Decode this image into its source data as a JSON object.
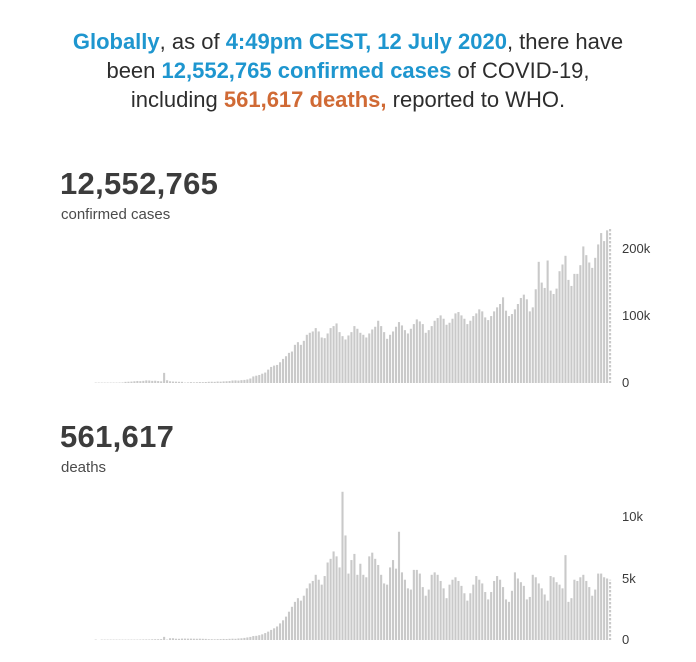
{
  "colors": {
    "accent_blue": "#1e96cf",
    "accent_orange": "#d06a35",
    "bar_gray": "#c9c9c9",
    "number_gray": "#3c3c3c",
    "text_dark": "#2d2d2d",
    "tick_gray": "#3a3a3a"
  },
  "summary": {
    "segments": [
      {
        "text": "Globally",
        "style": "blue"
      },
      {
        "text": ", as of ",
        "style": "plain"
      },
      {
        "text": "4:49pm CEST, 12 July 2020",
        "style": "blue"
      },
      {
        "text": ", there have been ",
        "style": "plain"
      },
      {
        "text": "12,552,765 confirmed cases",
        "style": "blue"
      },
      {
        "text": " of COVID-19, including ",
        "style": "plain"
      },
      {
        "text": "561,617 deaths,",
        "style": "orange"
      },
      {
        "text": " reported to WHO.",
        "style": "plain"
      }
    ]
  },
  "sections": {
    "cases": {
      "headline": "12,552,765",
      "label": "confirmed cases"
    },
    "deaths": {
      "headline": "561,617",
      "label": "deaths"
    }
  },
  "chart_data": [
    {
      "id": "cases",
      "type": "bar",
      "title": "confirmed cases (daily new, global)",
      "xlabel": "",
      "ylabel": "",
      "grid": false,
      "legend": "none",
      "bar_color": "#c9c9c9",
      "last_bar_partial": true,
      "ylim": [
        0,
        242000
      ],
      "yticks": [
        {
          "value": 200000,
          "label": "200k"
        },
        {
          "value": 100000,
          "label": "100k"
        },
        {
          "value": 0,
          "label": "0"
        }
      ],
      "values": [
        0,
        0,
        0,
        0,
        0,
        0,
        0,
        0,
        0,
        0,
        0,
        50,
        100,
        150,
        100,
        200,
        300,
        450,
        600,
        700,
        800,
        1700,
        1900,
        2100,
        2600,
        3000,
        2800,
        3200,
        3900,
        3700,
        3200,
        3400,
        2900,
        2500,
        15150,
        4100,
        2600,
        2200,
        2000,
        1800,
        1750,
        600,
        900,
        1300,
        1000,
        1200,
        1400,
        1300,
        1500,
        1800,
        1900,
        1750,
        2200,
        2000,
        2400,
        2600,
        2900,
        3700,
        3900,
        3600,
        4250,
        4600,
        5300,
        6700,
        9800,
        10900,
        12000,
        13900,
        15600,
        20000,
        24000,
        26000,
        27000,
        31000,
        36000,
        40000,
        45000,
        47000,
        57000,
        61000,
        57000,
        63000,
        72000,
        75000,
        77000,
        82000,
        77000,
        68000,
        67000,
        74000,
        82000,
        85000,
        89000,
        76000,
        70000,
        65000,
        71000,
        76000,
        85000,
        81000,
        75000,
        72000,
        68000,
        74000,
        80000,
        84000,
        93000,
        85000,
        76000,
        66000,
        72000,
        77000,
        84000,
        91000,
        86000,
        79000,
        74000,
        81000,
        88000,
        95000,
        92000,
        88000,
        75000,
        79000,
        85000,
        93000,
        97000,
        101000,
        96000,
        87000,
        90000,
        96000,
        104000,
        106000,
        101000,
        96000,
        88000,
        93000,
        100000,
        104000,
        110000,
        107000,
        98000,
        94000,
        100000,
        107000,
        113000,
        118000,
        128000,
        108000,
        100000,
        103000,
        110000,
        118000,
        127000,
        132000,
        125000,
        107000,
        113000,
        140000,
        181000,
        150000,
        142000,
        183000,
        138000,
        133000,
        141000,
        167000,
        177000,
        190000,
        154000,
        145000,
        163000,
        163000,
        176000,
        204000,
        191000,
        180000,
        172000,
        187000,
        207000,
        224000,
        212000,
        228000,
        230400
      ]
    },
    {
      "id": "deaths",
      "type": "bar",
      "title": "deaths (daily new, global)",
      "xlabel": "",
      "ylabel": "",
      "grid": false,
      "legend": "none",
      "bar_color": "#c9c9c9",
      "last_bar_partial": true,
      "ylim": [
        0,
        13170
      ],
      "yticks": [
        {
          "value": 10000,
          "label": "10k"
        },
        {
          "value": 5000,
          "label": "5k"
        },
        {
          "value": 0,
          "label": "0"
        }
      ],
      "values": [
        0,
        0,
        0,
        0,
        0,
        0,
        0,
        0,
        0,
        0,
        0,
        1,
        0,
        2,
        1,
        3,
        2,
        4,
        3,
        8,
        9,
        16,
        15,
        24,
        26,
        26,
        38,
        43,
        46,
        45,
        57,
        64,
        66,
        72,
        254,
        13,
        143,
        142,
        105,
        98,
        115,
        115,
        109,
        112,
        105,
        100,
        108,
        97,
        90,
        67,
        65,
        58,
        67,
        72,
        85,
        80,
        95,
        105,
        98,
        125,
        140,
        170,
        210,
        250,
        320,
        340,
        390,
        460,
        560,
        680,
        820,
        950,
        1100,
        1350,
        1600,
        1900,
        2300,
        2700,
        3100,
        3400,
        3200,
        3600,
        4200,
        4600,
        4800,
        5300,
        4900,
        4500,
        5200,
        6300,
        6600,
        7200,
        6800,
        5900,
        12050,
        8500,
        5400,
        6500,
        7000,
        5300,
        6200,
        5300,
        5100,
        6800,
        7100,
        6600,
        6100,
        5300,
        4600,
        4500,
        5900,
        6500,
        5800,
        8800,
        5500,
        4900,
        4200,
        4100,
        5700,
        5700,
        5400,
        4300,
        3600,
        4100,
        5300,
        5500,
        5300,
        4800,
        4200,
        3400,
        4500,
        4900,
        5100,
        4800,
        4400,
        3800,
        3200,
        3800,
        4500,
        5200,
        4900,
        4600,
        3900,
        3300,
        3900,
        4800,
        5200,
        4900,
        4300,
        3300,
        3100,
        4000,
        5500,
        5000,
        4700,
        4400,
        3300,
        3500,
        5300,
        5100,
        4600,
        4200,
        3700,
        3200,
        5200,
        5100,
        4700,
        4500,
        4200,
        6900,
        3100,
        3400,
        4900,
        4800,
        5100,
        5300,
        4800,
        4300,
        3600,
        4100,
        5400,
        5400,
        5100,
        5000,
        4900
      ]
    }
  ]
}
